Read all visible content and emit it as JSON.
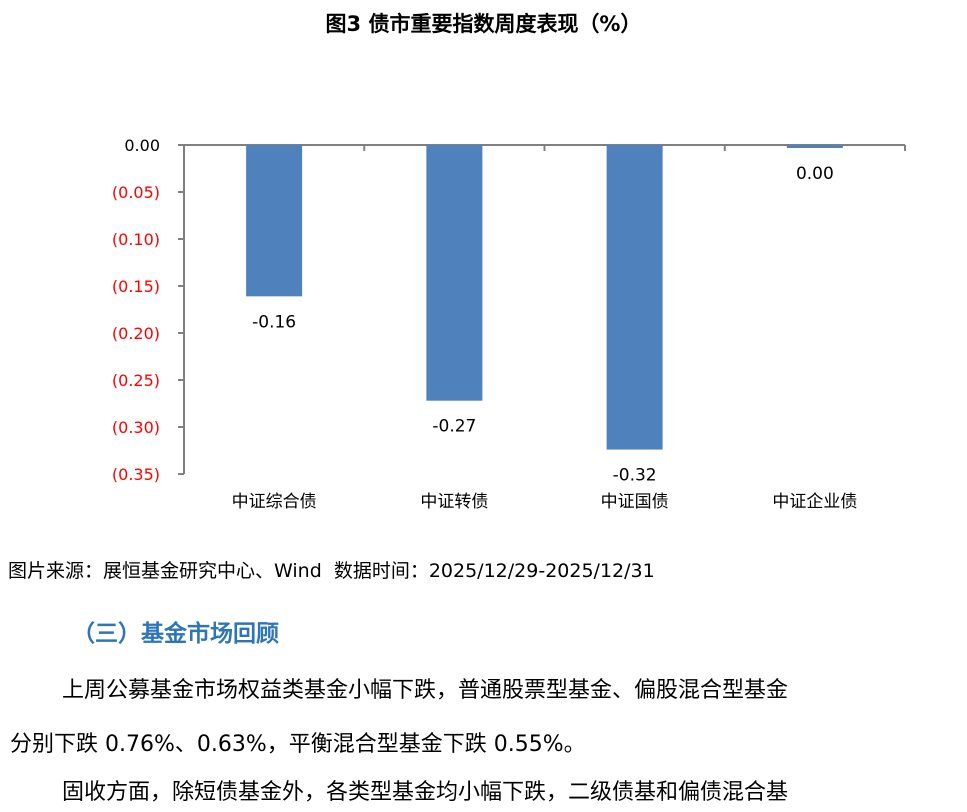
{
  "chart_data": {
    "type": "bar",
    "title": "图3 债市重要指数周度表现（%）",
    "categories": [
      "中证综合债",
      "中证转债",
      "中证国债",
      "中证企业债"
    ],
    "values": [
      -0.161,
      -0.272,
      -0.324,
      -0.003
    ],
    "data_labels": [
      "-0.16",
      "-0.27",
      "-0.32",
      "0.00"
    ],
    "ylim": [
      -0.35,
      0
    ],
    "yticks": [
      0,
      -0.05,
      -0.1,
      -0.15,
      -0.2,
      -0.25,
      -0.3,
      -0.35
    ],
    "ytick_labels": [
      "0.00",
      "(0.05)",
      "(0.10)",
      "(0.15)",
      "(0.20)",
      "(0.25)",
      "(0.30)",
      "(0.35)"
    ],
    "xlabel": "",
    "ylabel": "",
    "grid": false,
    "bar_color": "#4f81bd",
    "negative_tick_color": "#ff0000"
  },
  "source": "图片来源：展恒基金研究中心、Wind  数据时间：2025/12/29-2025/12/31",
  "section_heading": "（三）基金市场回顾",
  "paragraphs": [
    "上周公募基金市场权益类基金小幅下跌，普通股票型基金、偏股混合型基金",
    "分别下跌 0.76%、0.63%，平衡混合型基金下跌 0.55%。",
    "固收方面，除短债基金外，各类型基金均小幅下跌，二级债基和偏债混合基"
  ]
}
